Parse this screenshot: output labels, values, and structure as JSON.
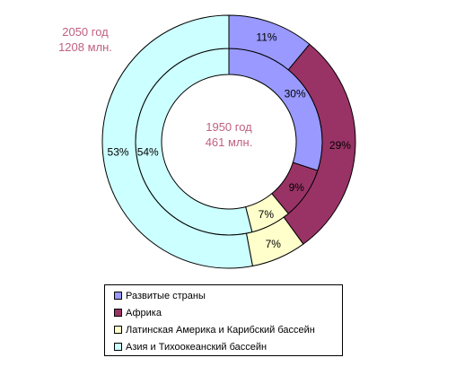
{
  "chart_data": {
    "type": "donut",
    "rings": [
      {
        "ring": "inner",
        "year_label": "1950 год",
        "population_label": "461 млн.",
        "values": [
          30,
          9,
          7,
          54
        ],
        "labels": [
          "30%",
          "9%",
          "7%",
          "54%"
        ]
      },
      {
        "ring": "outer",
        "year_label": "2050 год",
        "population_label": "1208 млн.",
        "values": [
          11,
          29,
          7,
          53
        ],
        "labels": [
          "11%",
          "29%",
          "7%",
          "53%"
        ]
      }
    ],
    "categories": [
      "Развитые  страны",
      "Африка",
      "Латинская Америка и  Карибский бассейн",
      "Азия и Тихоокеанский бассейн"
    ],
    "colors": [
      "#9999ff",
      "#993366",
      "#ffffcc",
      "#ccffff"
    ],
    "legend_position": "bottom"
  }
}
